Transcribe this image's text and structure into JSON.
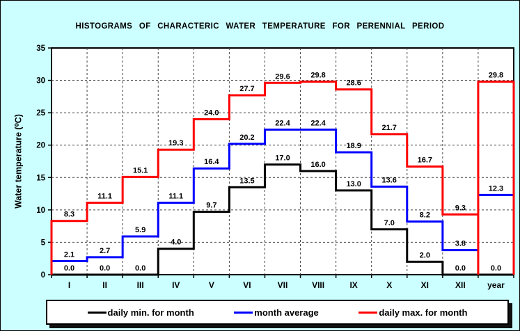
{
  "title": "HISTOGRAMS OF CHARACTERIC WATER TEMPERATURE FOR PERENNIAL PERIOD",
  "chart_data": {
    "type": "line",
    "style": "step-histogram",
    "title": "HISTOGRAMS OF CHARACTERIC WATER TEMPERATURE FOR PERENNIAL PERIOD",
    "categories": [
      "I",
      "II",
      "III",
      "IV",
      "V",
      "VI",
      "VII",
      "VIII",
      "IX",
      "X",
      "XI",
      "XII",
      "year"
    ],
    "series": [
      {
        "name": "daily min. for month",
        "color": "#000000",
        "year_style": "continue",
        "values": [
          0.0,
          0.0,
          0.0,
          4.0,
          9.7,
          13.5,
          17.0,
          16.0,
          13.0,
          7.0,
          2.0,
          0.0,
          0.0
        ]
      },
      {
        "name": "month average",
        "color": "#0000ff",
        "year_style": "segment",
        "values": [
          2.1,
          2.7,
          5.9,
          11.1,
          16.4,
          20.2,
          22.4,
          22.4,
          18.9,
          13.6,
          8.2,
          3.8,
          12.3
        ]
      },
      {
        "name": "daily max. for month",
        "color": "#ff0000",
        "year_style": "box",
        "values": [
          8.3,
          11.1,
          15.1,
          19.3,
          24.0,
          27.7,
          29.6,
          29.8,
          28.6,
          21.7,
          16.7,
          9.3,
          29.8
        ]
      }
    ],
    "xlabel": "",
    "ylabel": "Water temperature (⁰C)",
    "ylim": [
      0,
      35
    ],
    "ytick_step": 5,
    "grid": true,
    "value_labels": true,
    "legend_position": "bottom"
  },
  "colors": {
    "background": "#ccffff",
    "plot_background": "#ffffff",
    "grid": "#444444",
    "axis": "#000000",
    "label_text": "#000000"
  }
}
